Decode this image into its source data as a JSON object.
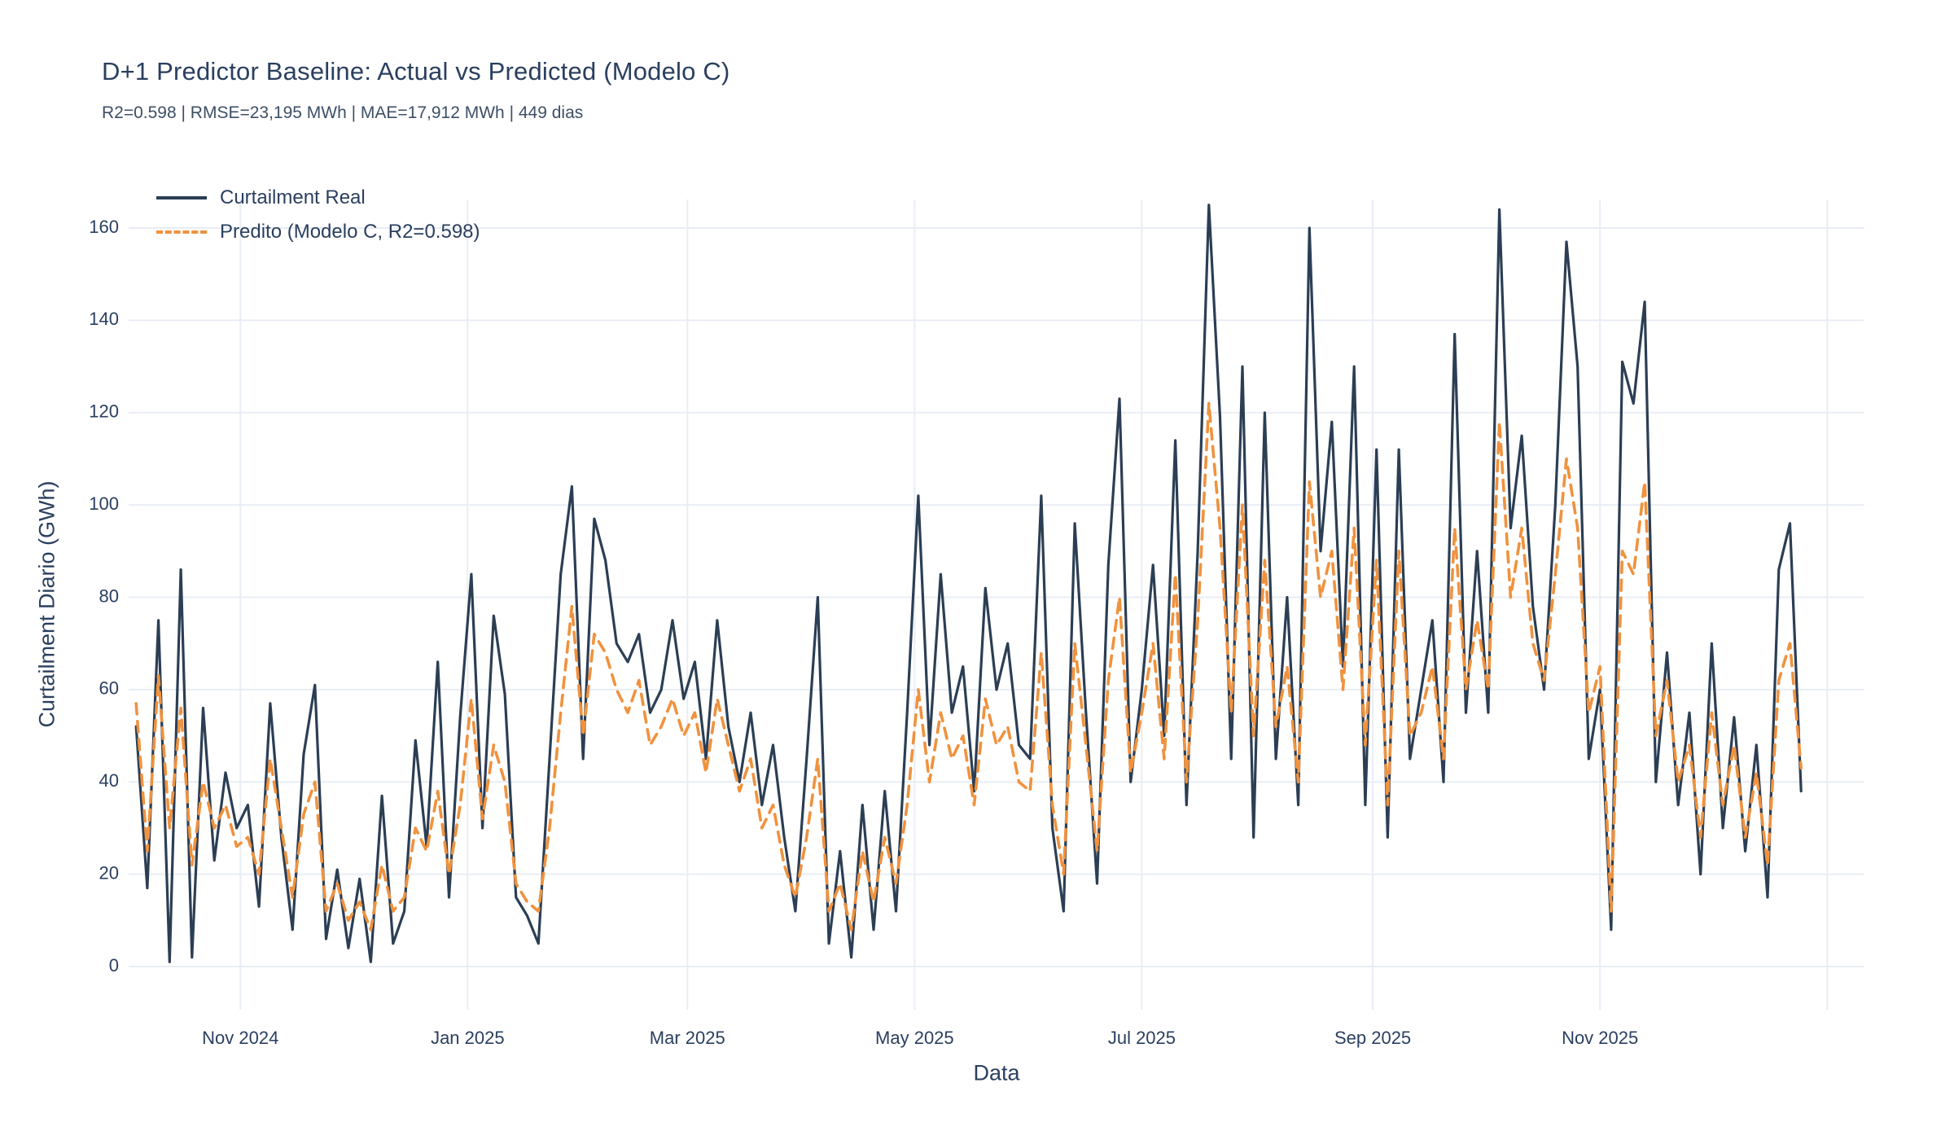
{
  "header": {
    "title": "D+1 Predictor Baseline: Actual vs Predicted (Modelo C)",
    "subtitle": "R2=0.598 | RMSE=23,195 MWh | MAE=17,912 MWh | 449 dias"
  },
  "colors": {
    "text": "#2a3f5f",
    "grid": "#e9edf5",
    "background": "#ffffff",
    "actual_line": "#2b3e54",
    "predicted_line": "#f0923e"
  },
  "chart_data": {
    "type": "line",
    "title": "D+1 Predictor Baseline: Actual vs Predicted (Modelo C)",
    "subtitle": "R2=0.598 | RMSE=23,195 MWh | MAE=17,912 MWh | 449 dias",
    "xlabel": "Data",
    "ylabel": "Curtailment Diario (GWh)",
    "grid": true,
    "legend_position": "top-left",
    "ylim": [
      -9,
      166
    ],
    "y_ticks": [
      0,
      20,
      40,
      60,
      80,
      100,
      120,
      140,
      160
    ],
    "x_domain": [
      "2024-10-02",
      "2026-01-11"
    ],
    "x_ticks": [
      {
        "date": "2024-11-01",
        "label": "Nov 2024"
      },
      {
        "date": "2025-01-01",
        "label": "Jan 2025"
      },
      {
        "date": "2025-03-01",
        "label": "Mar 2025"
      },
      {
        "date": "2025-05-01",
        "label": "May 2025"
      },
      {
        "date": "2025-07-01",
        "label": "Jul 2025"
      },
      {
        "date": "2025-09-01",
        "label": "Sep 2025"
      },
      {
        "date": "2025-11-01",
        "label": "Nov 2025"
      },
      {
        "date": "2026-01-01",
        "label": ""
      }
    ],
    "x": [
      "2024-10-04",
      "2024-10-07",
      "2024-10-10",
      "2024-10-13",
      "2024-10-16",
      "2024-10-19",
      "2024-10-22",
      "2024-10-25",
      "2024-10-28",
      "2024-10-31",
      "2024-11-03",
      "2024-11-06",
      "2024-11-09",
      "2024-11-12",
      "2024-11-15",
      "2024-11-18",
      "2024-11-21",
      "2024-11-24",
      "2024-11-27",
      "2024-11-30",
      "2024-12-03",
      "2024-12-06",
      "2024-12-09",
      "2024-12-12",
      "2024-12-15",
      "2024-12-18",
      "2024-12-21",
      "2024-12-24",
      "2024-12-27",
      "2024-12-30",
      "2025-01-02",
      "2025-01-05",
      "2025-01-08",
      "2025-01-11",
      "2025-01-14",
      "2025-01-17",
      "2025-01-20",
      "2025-01-23",
      "2025-01-26",
      "2025-01-29",
      "2025-02-01",
      "2025-02-04",
      "2025-02-07",
      "2025-02-10",
      "2025-02-13",
      "2025-02-16",
      "2025-02-19",
      "2025-02-22",
      "2025-02-25",
      "2025-02-28",
      "2025-03-03",
      "2025-03-06",
      "2025-03-09",
      "2025-03-12",
      "2025-03-15",
      "2025-03-18",
      "2025-03-21",
      "2025-03-24",
      "2025-03-27",
      "2025-03-30",
      "2025-04-02",
      "2025-04-05",
      "2025-04-08",
      "2025-04-11",
      "2025-04-14",
      "2025-04-17",
      "2025-04-20",
      "2025-04-23",
      "2025-04-26",
      "2025-04-29",
      "2025-05-02",
      "2025-05-05",
      "2025-05-08",
      "2025-05-11",
      "2025-05-14",
      "2025-05-17",
      "2025-05-20",
      "2025-05-23",
      "2025-05-26",
      "2025-05-29",
      "2025-06-01",
      "2025-06-04",
      "2025-06-07",
      "2025-06-10",
      "2025-06-13",
      "2025-06-16",
      "2025-06-19",
      "2025-06-22",
      "2025-06-25",
      "2025-06-28",
      "2025-07-01",
      "2025-07-04",
      "2025-07-07",
      "2025-07-10",
      "2025-07-13",
      "2025-07-16",
      "2025-07-19",
      "2025-07-22",
      "2025-07-25",
      "2025-07-28",
      "2025-07-31",
      "2025-08-03",
      "2025-08-06",
      "2025-08-09",
      "2025-08-12",
      "2025-08-15",
      "2025-08-18",
      "2025-08-21",
      "2025-08-24",
      "2025-08-27",
      "2025-08-30",
      "2025-09-02",
      "2025-09-05",
      "2025-09-08",
      "2025-09-11",
      "2025-09-14",
      "2025-09-17",
      "2025-09-20",
      "2025-09-23",
      "2025-09-26",
      "2025-09-29",
      "2025-10-02",
      "2025-10-05",
      "2025-10-08",
      "2025-10-11",
      "2025-10-14",
      "2025-10-17",
      "2025-10-20",
      "2025-10-23",
      "2025-10-26",
      "2025-10-29",
      "2025-11-01",
      "2025-11-04",
      "2025-11-07",
      "2025-11-10",
      "2025-11-13",
      "2025-11-16",
      "2025-11-19",
      "2025-11-22",
      "2025-11-25",
      "2025-11-28",
      "2025-12-01",
      "2025-12-04",
      "2025-12-07",
      "2025-12-10",
      "2025-12-13",
      "2025-12-16",
      "2025-12-19",
      "2025-12-22",
      "2025-12-25"
    ],
    "series": [
      {
        "name": "Curtailment Real",
        "color": "#2b3e54",
        "dash": "solid",
        "values": [
          52,
          17,
          75,
          1,
          86,
          2,
          56,
          23,
          42,
          30,
          35,
          13,
          57,
          28,
          8,
          46,
          61,
          6,
          21,
          4,
          19,
          1,
          37,
          5,
          12,
          49,
          26,
          66,
          15,
          54,
          85,
          30,
          76,
          59,
          15,
          11,
          5,
          45,
          85,
          104,
          45,
          97,
          88,
          70,
          66,
          72,
          55,
          60,
          75,
          58,
          66,
          45,
          75,
          52,
          40,
          55,
          35,
          48,
          28,
          12,
          45,
          80,
          5,
          25,
          2,
          35,
          8,
          38,
          12,
          55,
          102,
          48,
          85,
          55,
          65,
          38,
          82,
          60,
          70,
          48,
          45,
          102,
          30,
          12,
          96,
          55,
          18,
          87,
          123,
          40,
          60,
          87,
          50,
          114,
          35,
          90,
          165,
          119,
          45,
          130,
          28,
          120,
          45,
          80,
          35,
          160,
          90,
          118,
          65,
          130,
          35,
          112,
          28,
          112,
          45,
          60,
          75,
          40,
          137,
          55,
          90,
          55,
          164,
          95,
          115,
          78,
          60,
          100,
          157,
          130,
          45,
          60,
          8,
          131,
          122,
          144,
          40,
          68,
          35,
          55,
          20,
          70,
          30,
          54,
          25,
          48,
          15,
          86,
          96,
          38
        ]
      },
      {
        "name": "Predito (Modelo C, R2=0.598)",
        "color": "#f0923e",
        "dash": "dash",
        "values": [
          57,
          25,
          63,
          30,
          56,
          22,
          40,
          30,
          35,
          26,
          28,
          20,
          45,
          30,
          15,
          33,
          40,
          12,
          18,
          10,
          14,
          8,
          22,
          12,
          15,
          30,
          25,
          38,
          20,
          35,
          58,
          32,
          48,
          40,
          18,
          14,
          12,
          30,
          55,
          78,
          50,
          72,
          68,
          60,
          55,
          62,
          48,
          52,
          58,
          50,
          55,
          42,
          58,
          48,
          38,
          45,
          30,
          35,
          22,
          15,
          28,
          45,
          12,
          18,
          8,
          25,
          14,
          28,
          18,
          35,
          60,
          40,
          55,
          45,
          50,
          35,
          58,
          48,
          52,
          40,
          38,
          68,
          35,
          20,
          70,
          48,
          25,
          62,
          80,
          42,
          55,
          70,
          45,
          85,
          40,
          75,
          122,
          95,
          55,
          100,
          50,
          88,
          52,
          65,
          40,
          105,
          80,
          90,
          60,
          95,
          48,
          88,
          35,
          90,
          50,
          55,
          65,
          45,
          95,
          60,
          75,
          60,
          118,
          80,
          95,
          70,
          62,
          85,
          110,
          95,
          55,
          65,
          12,
          90,
          85,
          105,
          50,
          62,
          40,
          48,
          28,
          55,
          35,
          48,
          28,
          42,
          22,
          62,
          70,
          43
        ]
      }
    ]
  }
}
